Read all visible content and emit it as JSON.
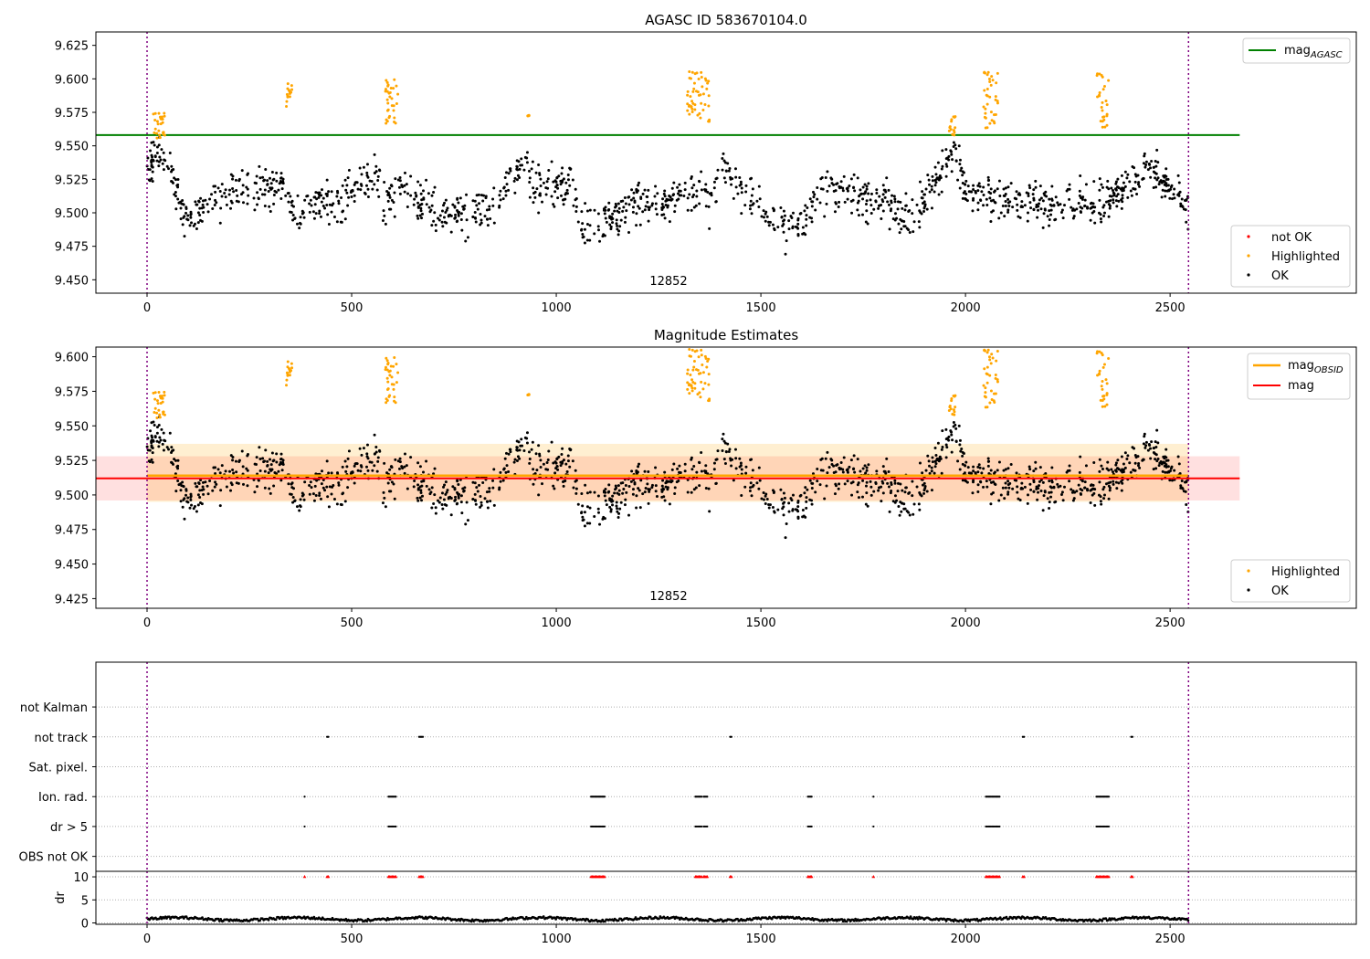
{
  "colors": {
    "ok": "#000000",
    "highlighted": "#ffa500",
    "not_ok": "#ff0000",
    "agasc_line": "#008000",
    "obsid_line": "#ffa500",
    "mag_line": "#ff0000",
    "obs_boundary": "#800080"
  },
  "chart_data": [
    {
      "type": "scatter",
      "title": "AGASC ID 583670104.0",
      "xlim": [
        -125,
        2955
      ],
      "ylim": [
        9.44,
        9.635
      ],
      "x_ticks": [
        0,
        500,
        1000,
        1500,
        2000,
        2500
      ],
      "x_tick_labels": [
        "0",
        "500",
        "1000",
        "1500",
        "2000",
        "2500"
      ],
      "y_ticks": [
        9.45,
        9.475,
        9.5,
        9.525,
        9.55,
        9.575,
        9.6,
        9.625
      ],
      "y_tick_labels": [
        "9.450",
        "9.475",
        "9.500",
        "9.525",
        "9.550",
        "9.575",
        "9.600",
        "9.625"
      ],
      "obs_boundaries": [
        0,
        2545
      ],
      "obsid_label": "12852",
      "mag_agasc": 9.558,
      "legend_top": {
        "position": "top-right",
        "label": "mag",
        "subscript": "AGASC"
      },
      "legend_bottom": {
        "position": "bottom-right",
        "entries": [
          "not OK",
          "Highlighted",
          "OK"
        ]
      },
      "highlight_clusters": [
        {
          "x": [
            15,
            45
          ],
          "y": [
            9.555,
            9.575
          ]
        },
        {
          "x": [
            340,
            355
          ],
          "y": [
            9.578,
            9.598
          ]
        },
        {
          "x": [
            580,
            615
          ],
          "y": [
            9.566,
            9.602
          ]
        },
        {
          "x": [
            930,
            935
          ],
          "y": [
            9.572,
            9.573
          ]
        },
        {
          "x": [
            1320,
            1375
          ],
          "y": [
            9.568,
            9.607
          ]
        },
        {
          "x": [
            1960,
            1975
          ],
          "y": [
            9.558,
            9.572
          ]
        },
        {
          "x": [
            2040,
            2080
          ],
          "y": [
            9.563,
            9.606
          ]
        },
        {
          "x": [
            2320,
            2350
          ],
          "y": [
            9.562,
            9.605
          ]
        }
      ],
      "ok_level_profile": {
        "x": [
          0,
          30,
          60,
          90,
          130,
          160,
          200,
          250,
          300,
          340,
          355,
          380,
          420,
          470,
          520,
          560,
          580,
          610,
          650,
          700,
          750,
          800,
          850,
          880,
          920,
          950,
          1000,
          1040,
          1060,
          1100,
          1150,
          1200,
          1250,
          1300,
          1350,
          1380,
          1410,
          1440,
          1500,
          1550,
          1600,
          1650,
          1700,
          1750,
          1800,
          1840,
          1880,
          1920,
          1950,
          1980,
          2000,
          2050,
          2100,
          2150,
          2200,
          2250,
          2300,
          2350,
          2400,
          2450,
          2500,
          2545
        ],
        "y": [
          9.535,
          9.545,
          9.525,
          9.5,
          9.5,
          9.51,
          9.515,
          9.518,
          9.522,
          9.525,
          9.5,
          9.5,
          9.51,
          9.505,
          9.52,
          9.53,
          9.505,
          9.52,
          9.515,
          9.505,
          9.5,
          9.498,
          9.505,
          9.52,
          9.535,
          9.52,
          9.52,
          9.525,
          9.49,
          9.49,
          9.5,
          9.51,
          9.5,
          9.515,
          9.52,
          9.51,
          9.535,
          9.52,
          9.5,
          9.495,
          9.49,
          9.515,
          9.515,
          9.51,
          9.51,
          9.495,
          9.5,
          9.52,
          9.538,
          9.545,
          9.515,
          9.515,
          9.51,
          9.51,
          9.505,
          9.51,
          9.505,
          9.51,
          9.52,
          9.535,
          9.52,
          9.505
        ]
      },
      "ok_count_approx": 1500
    },
    {
      "type": "scatter",
      "title": "Magnitude Estimates",
      "xlim": [
        -125,
        2955
      ],
      "ylim": [
        9.418,
        9.607
      ],
      "x_ticks": [
        0,
        500,
        1000,
        1500,
        2000,
        2500
      ],
      "x_tick_labels": [
        "0",
        "500",
        "1000",
        "1500",
        "2000",
        "2500"
      ],
      "y_ticks": [
        9.425,
        9.45,
        9.475,
        9.5,
        9.525,
        9.55,
        9.575,
        9.6
      ],
      "y_tick_labels": [
        "9.425",
        "9.450",
        "9.475",
        "9.500",
        "9.525",
        "9.550",
        "9.575",
        "9.600"
      ],
      "obs_boundaries": [
        0,
        2545
      ],
      "obsid_label": "12852",
      "mag_obsid": 9.514,
      "mag_obsid_band": [
        9.495,
        9.537
      ],
      "mag": 9.512,
      "mag_band": [
        9.496,
        9.528
      ],
      "legend_top": {
        "position": "top-right",
        "entries": [
          {
            "label": "mag",
            "subscript": "OBSID"
          },
          {
            "label": "mag",
            "subscript": ""
          }
        ]
      },
      "legend_bottom": {
        "position": "bottom-right",
        "entries": [
          "Highlighted",
          "OK"
        ]
      }
    },
    {
      "type": "scatter",
      "title": "",
      "xlim": [
        -125,
        2955
      ],
      "ylim": [
        -0.5,
        6.5
      ],
      "categories": [
        "OBS not OK",
        "dr > 5",
        "Ion. rad.",
        "Sat. pixel.",
        "not track",
        "not Kalman"
      ],
      "x_ticks": [
        0,
        500,
        1000,
        1500,
        2000,
        2500
      ],
      "x_tick_labels": [
        "0",
        "500",
        "1000",
        "1500",
        "2000",
        "2500"
      ],
      "obs_boundaries": [
        0,
        2545
      ],
      "flags": {
        "not track": [
          [
            440,
            445
          ],
          [
            665,
            675
          ],
          [
            1425,
            1430
          ],
          [
            2140,
            2145
          ],
          [
            2405,
            2410
          ]
        ],
        "Ion. rad.": [
          [
            385,
            386
          ],
          [
            590,
            610
          ],
          [
            1085,
            1120
          ],
          [
            1340,
            1355
          ],
          [
            1360,
            1370
          ],
          [
            1615,
            1625
          ],
          [
            1775,
            1776
          ],
          [
            2050,
            2085
          ],
          [
            2320,
            2350
          ]
        ],
        "dr > 5": [
          [
            385,
            386
          ],
          [
            590,
            610
          ],
          [
            1085,
            1120
          ],
          [
            1340,
            1355
          ],
          [
            1360,
            1370
          ],
          [
            1615,
            1625
          ],
          [
            1775,
            1776
          ],
          [
            2050,
            2085
          ],
          [
            2320,
            2350
          ]
        ]
      }
    },
    {
      "type": "scatter",
      "title": "",
      "xlim": [
        -125,
        2955
      ],
      "ylim": [
        -0.3,
        11.2
      ],
      "ylabel": "dr",
      "y_ticks": [
        0,
        5,
        10
      ],
      "y_tick_labels": [
        "0",
        "5",
        "10"
      ],
      "x_ticks": [
        0,
        500,
        1000,
        1500,
        2000,
        2500
      ],
      "x_tick_labels": [
        "0",
        "500",
        "1000",
        "1500",
        "2000",
        "2500"
      ],
      "obs_boundaries": [
        0,
        2545
      ],
      "dr_typical_range": [
        0.2,
        1.5
      ],
      "dr_clipped_value": 10,
      "dr_clipped_ranges": [
        [
          385,
          386
        ],
        [
          440,
          445
        ],
        [
          590,
          610
        ],
        [
          665,
          675
        ],
        [
          1085,
          1120
        ],
        [
          1340,
          1355
        ],
        [
          1360,
          1370
        ],
        [
          1425,
          1430
        ],
        [
          1615,
          1625
        ],
        [
          1775,
          1776
        ],
        [
          2050,
          2085
        ],
        [
          2140,
          2145
        ],
        [
          2320,
          2350
        ],
        [
          2405,
          2410
        ]
      ]
    }
  ]
}
